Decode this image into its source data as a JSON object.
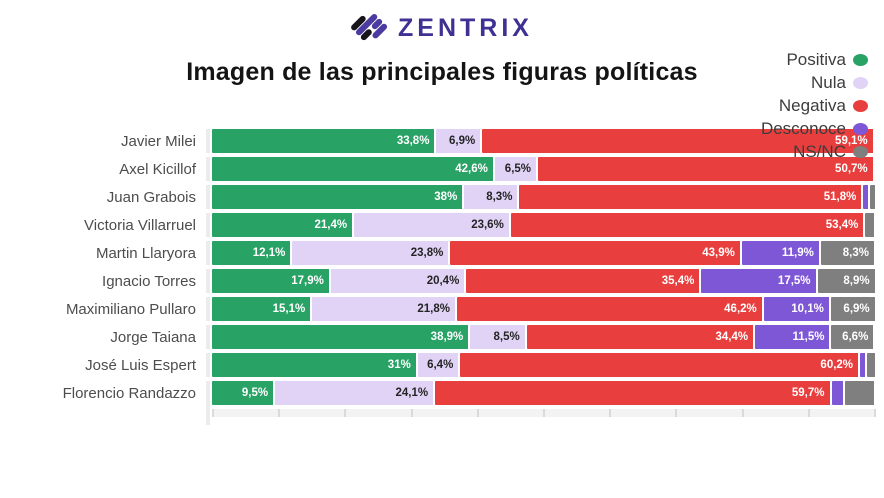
{
  "logo": {
    "text": "ZENTRIX"
  },
  "title": "Imagen de las principales figuras políticas",
  "colors": {
    "brand_text": "#3f3193",
    "brand_icon_purple": "#4b3aa0",
    "brand_icon_black": "#17141a",
    "positiva": "#29a266",
    "nula": "#e1d3f6",
    "negativa": "#e83e3e",
    "desconoce": "#7e57d6",
    "nsnc": "#7f7f7f",
    "axis_strip": "#f3f3f3",
    "row_cap": "#ececec"
  },
  "legend": [
    {
      "label": "Positiva",
      "color": "#29a266"
    },
    {
      "label": "Nula",
      "color": "#e1d3f6"
    },
    {
      "label": "Negativa",
      "color": "#e83e3e"
    },
    {
      "label": "Desconoce",
      "color": "#7e57d6"
    },
    {
      "label": "NS/NC",
      "color": "#7f7f7f"
    }
  ],
  "chart_data": {
    "type": "bar",
    "orientation": "horizontal",
    "stacked": true,
    "title": "Imagen de las principales figuras políticas",
    "xlabel": "",
    "ylabel": "",
    "x_axis": {
      "min": 0,
      "max": 100,
      "tick_interval": 10,
      "tick_labels_visible": false
    },
    "legend_position": "top-right",
    "series_names": [
      "Positiva",
      "Nula",
      "Negativa",
      "Desconoce",
      "NS/NC"
    ],
    "categories": [
      "Javier Milei",
      "Axel Kicillof",
      "Juan Grabois",
      "Victoria Villarruel",
      "Martin Llaryora",
      "Ignacio Torres",
      "Maximiliano Pullaro",
      "Jorge Taiana",
      "José Luis Espert",
      "Florencio Randazzo"
    ],
    "rows": [
      {
        "name": "Javier Milei",
        "segments": [
          {
            "series": "Positiva",
            "value": 33.8,
            "label": "33,8%"
          },
          {
            "series": "Nula",
            "value": 6.9,
            "label": "6,9%"
          },
          {
            "series": "Negativa",
            "value": 59.1,
            "label": "59,1%"
          }
        ]
      },
      {
        "name": "Axel Kicillof",
        "segments": [
          {
            "series": "Positiva",
            "value": 42.6,
            "label": "42,6%"
          },
          {
            "series": "Nula",
            "value": 6.5,
            "label": "6,5%"
          },
          {
            "series": "Negativa",
            "value": 50.7,
            "label": "50,7%"
          }
        ]
      },
      {
        "name": "Juan Grabois",
        "segments": [
          {
            "series": "Positiva",
            "value": 38,
            "label": "38%"
          },
          {
            "series": "Nula",
            "value": 8.3,
            "label": "8,3%"
          },
          {
            "series": "Negativa",
            "value": 51.8,
            "label": "51,8%"
          },
          {
            "series": "Desconoce",
            "value": 1.0,
            "label": ""
          },
          {
            "series": "NS/NC",
            "value": 0.9,
            "label": ""
          }
        ]
      },
      {
        "name": "Victoria Villarruel",
        "segments": [
          {
            "series": "Positiva",
            "value": 21.4,
            "label": "21,4%"
          },
          {
            "series": "Nula",
            "value": 23.6,
            "label": "23,6%"
          },
          {
            "series": "Negativa",
            "value": 53.4,
            "label": "53,4%"
          },
          {
            "series": "NS/NC",
            "value": 1.6,
            "label": ""
          }
        ]
      },
      {
        "name": "Martin Llaryora",
        "segments": [
          {
            "series": "Positiva",
            "value": 12.1,
            "label": "12,1%"
          },
          {
            "series": "Nula",
            "value": 23.8,
            "label": "23,8%"
          },
          {
            "series": "Negativa",
            "value": 43.9,
            "label": "43,9%"
          },
          {
            "series": "Desconoce",
            "value": 11.9,
            "label": "11,9%"
          },
          {
            "series": "NS/NC",
            "value": 8.3,
            "label": "8,3%"
          }
        ]
      },
      {
        "name": "Ignacio Torres",
        "segments": [
          {
            "series": "Positiva",
            "value": 17.9,
            "label": "17,9%"
          },
          {
            "series": "Nula",
            "value": 20.4,
            "label": "20,4%"
          },
          {
            "series": "Negativa",
            "value": 35.4,
            "label": "35,4%"
          },
          {
            "series": "Desconoce",
            "value": 17.5,
            "label": "17,5%"
          },
          {
            "series": "NS/NC",
            "value": 8.9,
            "label": "8,9%"
          }
        ]
      },
      {
        "name": "Maximiliano Pullaro",
        "segments": [
          {
            "series": "Positiva",
            "value": 15.1,
            "label": "15,1%"
          },
          {
            "series": "Nula",
            "value": 21.8,
            "label": "21,8%"
          },
          {
            "series": "Negativa",
            "value": 46.2,
            "label": "46,2%"
          },
          {
            "series": "Desconoce",
            "value": 10.1,
            "label": "10,1%"
          },
          {
            "series": "NS/NC",
            "value": 6.9,
            "label": "6,9%"
          }
        ]
      },
      {
        "name": "Jorge Taiana",
        "segments": [
          {
            "series": "Positiva",
            "value": 38.9,
            "label": "38,9%"
          },
          {
            "series": "Nula",
            "value": 8.5,
            "label": "8,5%"
          },
          {
            "series": "Negativa",
            "value": 34.4,
            "label": "34,4%"
          },
          {
            "series": "Desconoce",
            "value": 11.5,
            "label": "11,5%"
          },
          {
            "series": "NS/NC",
            "value": 6.6,
            "label": "6,6%"
          }
        ]
      },
      {
        "name": "José Luis Espert",
        "segments": [
          {
            "series": "Positiva",
            "value": 31,
            "label": "31%"
          },
          {
            "series": "Nula",
            "value": 6.4,
            "label": "6,4%"
          },
          {
            "series": "Negativa",
            "value": 60.2,
            "label": "60,2%"
          },
          {
            "series": "Desconoce",
            "value": 0.9,
            "label": ""
          },
          {
            "series": "NS/NC",
            "value": 1.5,
            "label": ""
          }
        ]
      },
      {
        "name": "Florencio Randazzo",
        "segments": [
          {
            "series": "Positiva",
            "value": 9.5,
            "label": "9,5%"
          },
          {
            "series": "Nula",
            "value": 24.1,
            "label": "24,1%"
          },
          {
            "series": "Negativa",
            "value": 59.7,
            "label": "59,7%"
          },
          {
            "series": "Desconoce",
            "value": 2.1,
            "label": ""
          },
          {
            "series": "NS/NC",
            "value": 4.6,
            "label": ""
          }
        ]
      }
    ]
  }
}
